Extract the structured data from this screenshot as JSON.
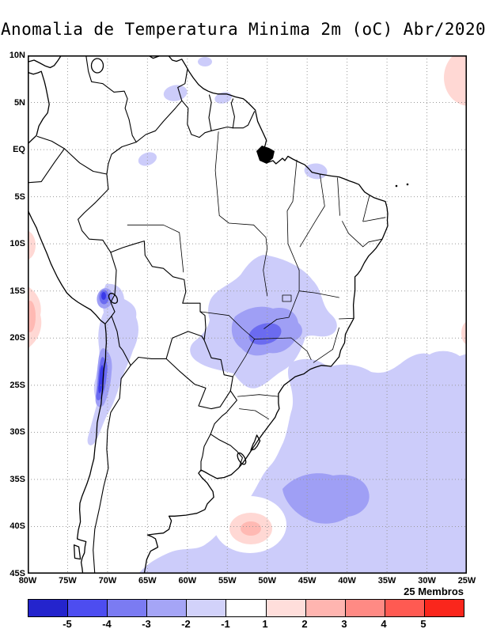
{
  "title": "Anomalia de Temperatura Minima 2m (oC) Abr/2020",
  "members_label": "25 Membros",
  "axes": {
    "lat_labels": [
      "10N",
      "5N",
      "EQ",
      "5S",
      "10S",
      "15S",
      "20S",
      "25S",
      "30S",
      "35S",
      "40S",
      "45S"
    ],
    "lon_labels": [
      "80W",
      "75W",
      "70W",
      "65W",
      "60W",
      "55W",
      "50W",
      "45W",
      "40W",
      "35W",
      "30W",
      "25W"
    ]
  },
  "colorbar": {
    "tick_labels": [
      "-5",
      "-4",
      "-3",
      "-2",
      "-1",
      "1",
      "2",
      "3",
      "4",
      "5"
    ],
    "segment_colors": [
      "#2424cd",
      "#4d4df0",
      "#7b7bf2",
      "#a5a5f6",
      "#d2d2fa",
      "#ffffff",
      "#ffdedb",
      "#ffb5b0",
      "#ff8a84",
      "#ff5a52",
      "#fa261c"
    ]
  },
  "map": {
    "anomaly_palette": {
      "neg_1_to_2": "#ccccfa",
      "neg_2_to_3": "#9f9ff5",
      "neg_3_to_4": "#6b6bf0",
      "neg_4_to_5": "#3a3ae8",
      "pos_1_to_2": "#ffd8d4",
      "pos_2_to_3": "#ffb9b3"
    },
    "grid_color": "#999999",
    "outline_color": "#000000",
    "regions": [
      {
        "area": "central Brazil",
        "sign": "negative",
        "peak_anomaly": -3
      },
      {
        "area": "northern Chile coast (Atacama)",
        "sign": "negative",
        "peak_anomaly": -5
      },
      {
        "area": "southern Peru Andes spot",
        "sign": "negative",
        "peak_anomaly": -5
      },
      {
        "area": "southwest Atlantic 30S-42S",
        "sign": "negative",
        "peak_anomaly": -3
      },
      {
        "area": "Pacific off Peru coast 9S-21S",
        "sign": "positive",
        "peak_anomaly": 2
      },
      {
        "area": "tropical Atlantic northeast corner",
        "sign": "positive",
        "peak_anomaly": 2
      },
      {
        "area": "Atlantic near 52W 40S",
        "sign": "positive",
        "peak_anomaly": 2
      }
    ]
  }
}
